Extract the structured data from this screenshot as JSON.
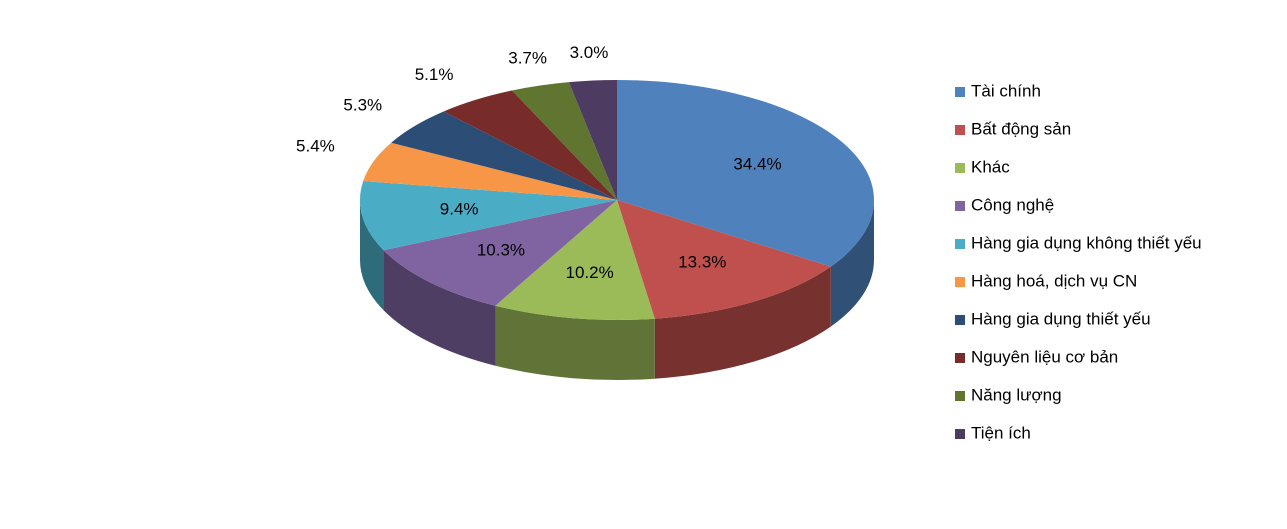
{
  "chart_data": {
    "type": "pie3d",
    "categories": [
      "Tài chính",
      "Bất động sản",
      "Khác",
      "Công nghệ",
      "Hàng gia dụng không thiết yếu",
      "Hàng hoá, dịch vụ CN",
      "Hàng gia dụng thiết yếu",
      "Nguyên liệu cơ bản",
      "Năng lượng",
      "Tiện ích"
    ],
    "values": [
      34.4,
      13.3,
      10.2,
      10.3,
      9.4,
      5.4,
      5.3,
      5.1,
      3.7,
      3.0
    ],
    "value_labels": [
      "34.4%",
      "13.3%",
      "10.2%",
      "10.3%",
      "9.4%",
      "5.4%",
      "5.3%",
      "5.1%",
      "3.7%",
      "3.0%"
    ],
    "colors": [
      "#4f81bd",
      "#c0504d",
      "#9bbb59",
      "#8064a2",
      "#4bacc6",
      "#f79646",
      "#2c4d75",
      "#772c2a",
      "#5f7530",
      "#4d3b62"
    ],
    "legend": "right"
  }
}
